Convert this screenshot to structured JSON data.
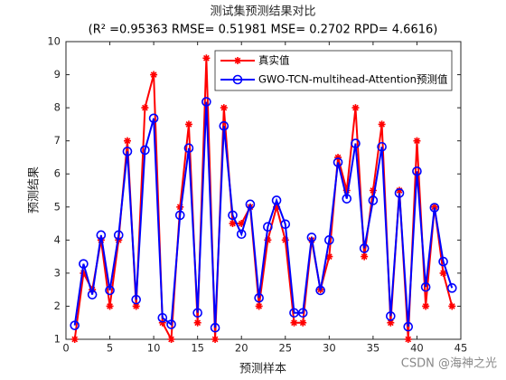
{
  "chart_data": {
    "type": "line",
    "title": "测试集预测结果对比",
    "subtitle": "(R² =0.95363 RMSE= 0.51981 MSE= 0.2702 RPD= 4.6616)",
    "x_label": "预测样本",
    "y_label": "预测结果",
    "x": [
      1,
      2,
      3,
      4,
      5,
      6,
      7,
      8,
      9,
      10,
      11,
      12,
      13,
      14,
      15,
      16,
      17,
      18,
      19,
      20,
      21,
      22,
      23,
      24,
      25,
      26,
      27,
      28,
      29,
      30,
      31,
      32,
      33,
      34,
      35,
      36,
      37,
      38,
      39,
      40,
      41,
      42,
      43,
      44
    ],
    "series": [
      {
        "name": "真实值",
        "color": "#ff0000",
        "marker": "star",
        "values": [
          1,
          3,
          2.5,
          4,
          2,
          4,
          7,
          2,
          8,
          9,
          1.5,
          1,
          5,
          7.5,
          1.5,
          9.5,
          1,
          8,
          4.5,
          4.5,
          5,
          2,
          4,
          5,
          4,
          1.5,
          1.5,
          4,
          2.5,
          3.5,
          6.5,
          5.5,
          8,
          3.5,
          5.5,
          7.5,
          1.5,
          5.5,
          1,
          7,
          2,
          5,
          3,
          2
        ]
      },
      {
        "name": "GWO-TCN-multihead-Attention预测值",
        "color": "#0000ff",
        "marker": "circle",
        "values": [
          1.42,
          3.28,
          2.35,
          4.15,
          2.48,
          4.15,
          6.68,
          2.2,
          6.72,
          7.68,
          1.65,
          1.45,
          4.75,
          6.78,
          1.8,
          8.18,
          1.35,
          7.45,
          4.75,
          4.18,
          5.08,
          2.25,
          4.4,
          5.2,
          4.48,
          1.8,
          1.8,
          4.08,
          2.48,
          4.0,
          6.35,
          5.25,
          6.92,
          3.75,
          5.2,
          6.82,
          1.7,
          5.42,
          1.38,
          6.08,
          2.58,
          4.98,
          3.35,
          2.55
        ]
      }
    ],
    "xlim": [
      0,
      45
    ],
    "xticks": [
      0,
      5,
      10,
      15,
      20,
      25,
      30,
      35,
      40,
      45
    ],
    "ylim": [
      1,
      10
    ],
    "yticks": [
      1,
      2,
      3,
      4,
      5,
      6,
      7,
      8,
      9,
      10
    ],
    "legend": "top-right",
    "watermark": "CSDN @海神之光"
  }
}
